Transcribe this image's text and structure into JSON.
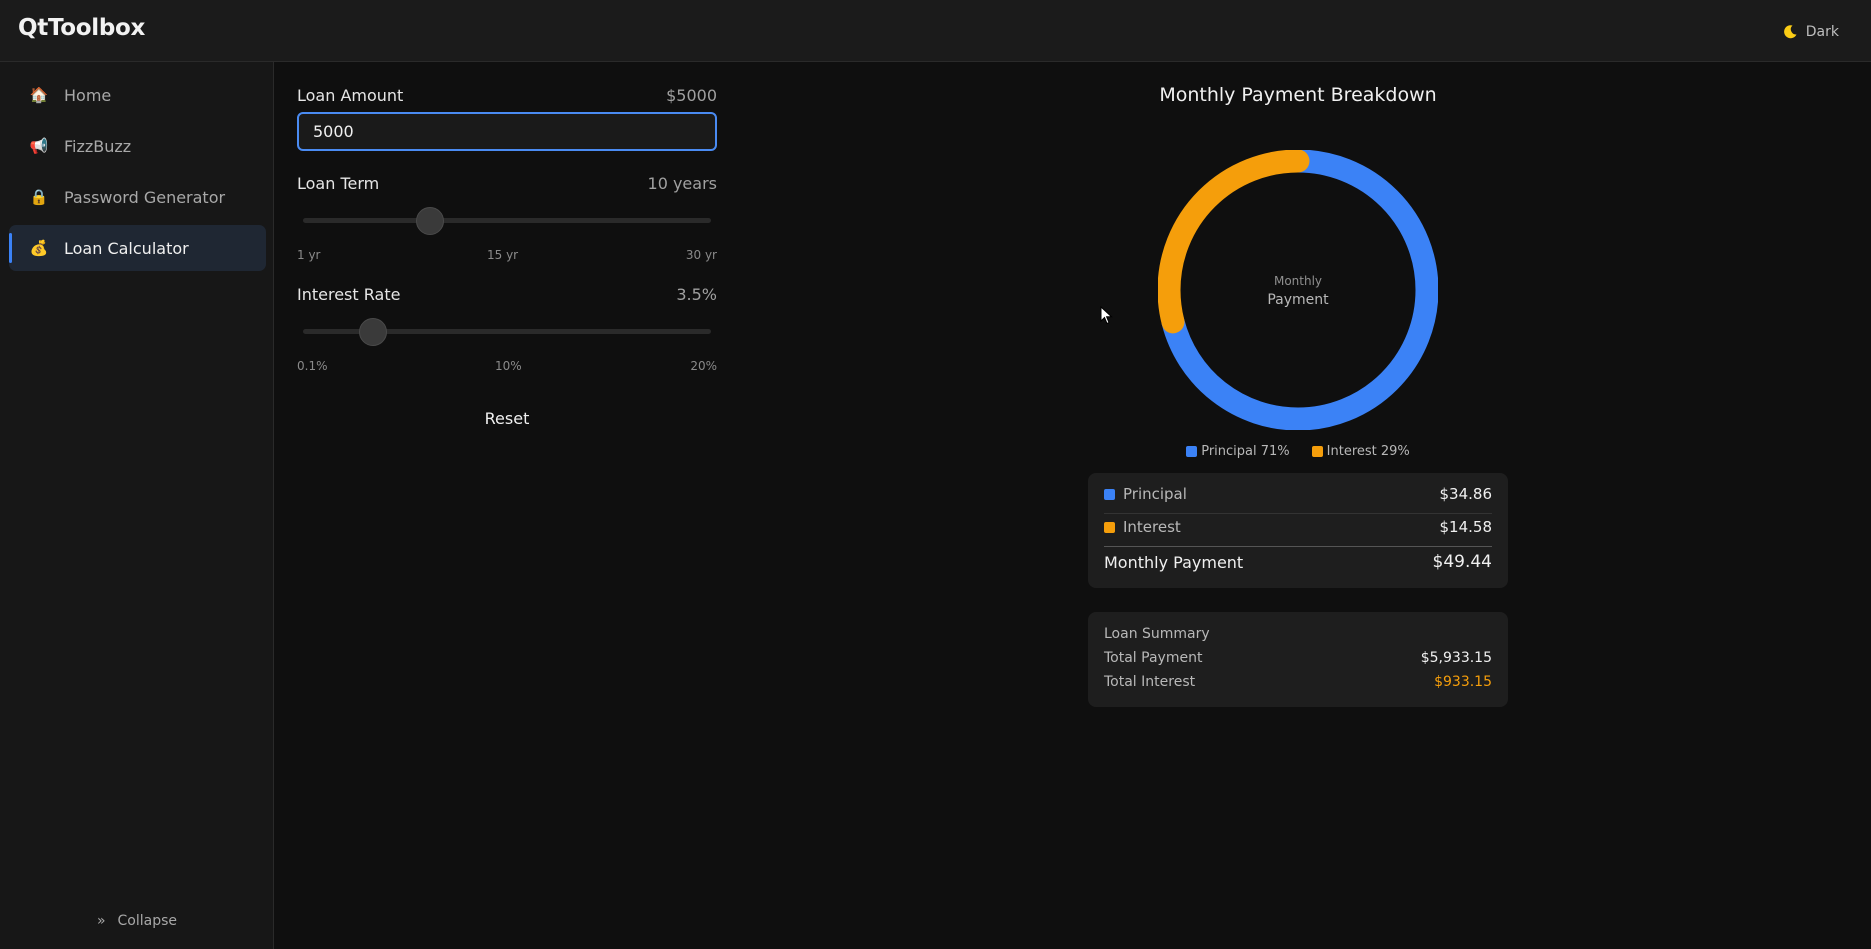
{
  "app": {
    "title": "QtToolbox"
  },
  "theme": {
    "label": "Dark",
    "icon": "moon-icon",
    "icon_color": "#facc15"
  },
  "sidebar": {
    "items": [
      {
        "label": "Home",
        "icon": "house-icon",
        "glyph": "🏠",
        "active": false
      },
      {
        "label": "FizzBuzz",
        "icon": "megaphone-icon",
        "glyph": "📢",
        "active": false
      },
      {
        "label": "Password Generator",
        "icon": "lock-icon",
        "glyph": "🔒",
        "active": false
      },
      {
        "label": "Loan Calculator",
        "icon": "money-bag-icon",
        "glyph": "💰",
        "active": true
      }
    ],
    "collapse_label": "Collapse",
    "collapse_glyph": "»"
  },
  "form": {
    "amount": {
      "label": "Loan Amount",
      "display": "$5000",
      "value": "5000"
    },
    "term": {
      "label": "Loan Term",
      "display": "10 years",
      "value_years": 10,
      "min": 1,
      "max": 30,
      "ticks": [
        "1 yr",
        "15 yr",
        "30 yr"
      ]
    },
    "rate": {
      "label": "Interest Rate",
      "display": "3.5%",
      "value_percent": 3.5,
      "min": 0.1,
      "max": 20,
      "ticks": [
        "0.1%",
        "10%",
        "20%"
      ]
    },
    "reset_label": "Reset"
  },
  "chart_data": {
    "type": "pie",
    "title": "Monthly Payment Breakdown",
    "center_label": [
      "Monthly",
      "Payment"
    ],
    "categories": [
      "Principal",
      "Interest"
    ],
    "values": [
      71,
      29
    ],
    "legend": [
      "Principal 71%",
      "Interest 29%"
    ],
    "colors": [
      "#3b82f6",
      "#f59e0b"
    ],
    "donut": true
  },
  "breakdown": {
    "principal": {
      "label": "Principal",
      "value": "$34.86"
    },
    "interest": {
      "label": "Interest",
      "value": "$14.58"
    },
    "total": {
      "label": "Monthly Payment",
      "value": "$49.44"
    }
  },
  "summary": {
    "heading": "Loan Summary",
    "total_payment": {
      "label": "Total Payment",
      "value": "$5,933.15"
    },
    "total_interest": {
      "label": "Total Interest",
      "value": "$933.15"
    }
  }
}
